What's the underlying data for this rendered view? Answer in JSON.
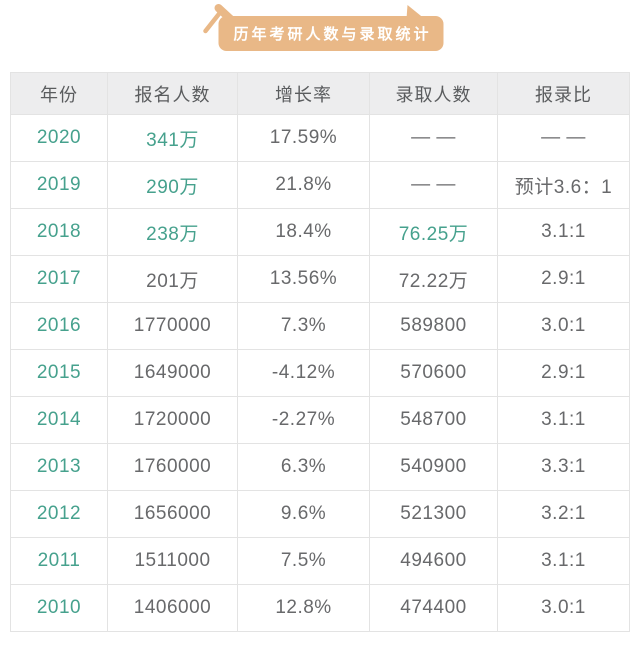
{
  "badge": {
    "text": "历年考研人数与录取统计"
  },
  "colors": {
    "page_bg": "#ffffff",
    "badge_bg": "#e9b887",
    "accent_teal": "#46a18d",
    "text_gray": "#68696b",
    "header_text": "#5a5c5e",
    "header_bg": "#ededee",
    "border": "#e3e3e3"
  },
  "icons": {
    "gavel": "gavel-icon",
    "pennant": "pennant-icon"
  },
  "chart_data": {
    "type": "table",
    "title": "历年考研人数与录取统计",
    "columns": [
      "年份",
      "报名人数",
      "增长率",
      "录取人数",
      "报录比"
    ],
    "rows": [
      [
        "2020",
        "341万",
        "17.59%",
        "— —",
        "— —"
      ],
      [
        "2019",
        "290万",
        "21.8%",
        "— —",
        "预计3.6：1"
      ],
      [
        "2018",
        "238万",
        "18.4%",
        "76.25万",
        "3.1:1"
      ],
      [
        "2017",
        "201万",
        "13.56%",
        "72.22万",
        "2.9:1"
      ],
      [
        "2016",
        "1770000",
        "7.3%",
        "589800",
        "3.0:1"
      ],
      [
        "2015",
        "1649000",
        "-4.12%",
        "570600",
        "2.9:1"
      ],
      [
        "2014",
        "1720000",
        "-2.27%",
        "548700",
        "3.1:1"
      ],
      [
        "2013",
        "1760000",
        "6.3%",
        "540900",
        "3.3:1"
      ],
      [
        "2012",
        "1656000",
        "9.6%",
        "521300",
        "3.2:1"
      ],
      [
        "2011",
        "1511000",
        "7.5%",
        "494600",
        "3.1:1"
      ],
      [
        "2010",
        "1406000",
        "12.8%",
        "474400",
        "3.0:1"
      ]
    ],
    "legend_position": "none",
    "grid": true
  },
  "table_style": {
    "accent_cells": [
      [
        0,
        1
      ],
      [
        0,
        1
      ],
      [
        0,
        1,
        3
      ],
      [
        0
      ],
      [
        0
      ],
      [
        0
      ],
      [
        0
      ],
      [
        0
      ],
      [
        0
      ],
      [
        0
      ],
      [
        0
      ]
    ]
  }
}
